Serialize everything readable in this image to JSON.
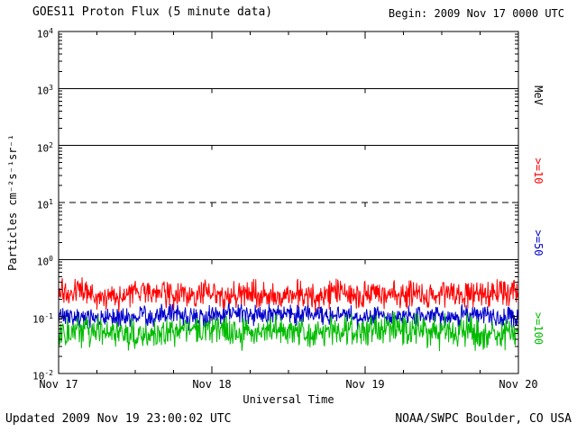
{
  "header": {
    "title": "GOES11 Proton Flux (5 minute data)",
    "begin_label": "Begin: 2009 Nov 17 0000 UTC"
  },
  "footer": {
    "updated": "Updated 2009 Nov 19 23:00:02 UTC",
    "credit": "NOAA/SWPC Boulder, CO USA"
  },
  "axes": {
    "ylabel": "Particles cm⁻²s⁻¹sr⁻¹",
    "xlabel": "Universal Time",
    "right_unit": "MeV"
  },
  "chart_data": {
    "type": "line",
    "title": "GOES11 Proton Flux (5 minute data)",
    "xlabel": "Universal Time",
    "ylabel": "Particles cm⁻²s⁻¹sr⁻¹",
    "x_ticks": [
      "Nov 17",
      "Nov 18",
      "Nov 19",
      "Nov 20"
    ],
    "y_tick_exponents": [
      4,
      3,
      2,
      1,
      0,
      -1,
      -2
    ],
    "ylim_log10": [
      -2,
      4
    ],
    "days": 3,
    "points_per_day": 288,
    "grid_solid_log10": [
      0,
      2,
      3
    ],
    "grid_dashed_log10": [
      1
    ],
    "vertical_gridline_days": [
      1,
      2
    ],
    "right_axis_unit": "MeV",
    "legend_position": "right",
    "series": [
      {
        "name": ">=10",
        "color": "#ff0000",
        "approx_flux": 0.25,
        "base_log10": -0.6,
        "noise_log10": 0.18
      },
      {
        "name": ">=50",
        "color": "#0000cc",
        "approx_flux": 0.1,
        "base_log10": -0.99,
        "noise_log10": 0.13
      },
      {
        "name": ">=100",
        "color": "#00bb00",
        "approx_flux": 0.055,
        "base_log10": -1.27,
        "noise_log10": 0.2
      }
    ],
    "seed": 20091117
  }
}
